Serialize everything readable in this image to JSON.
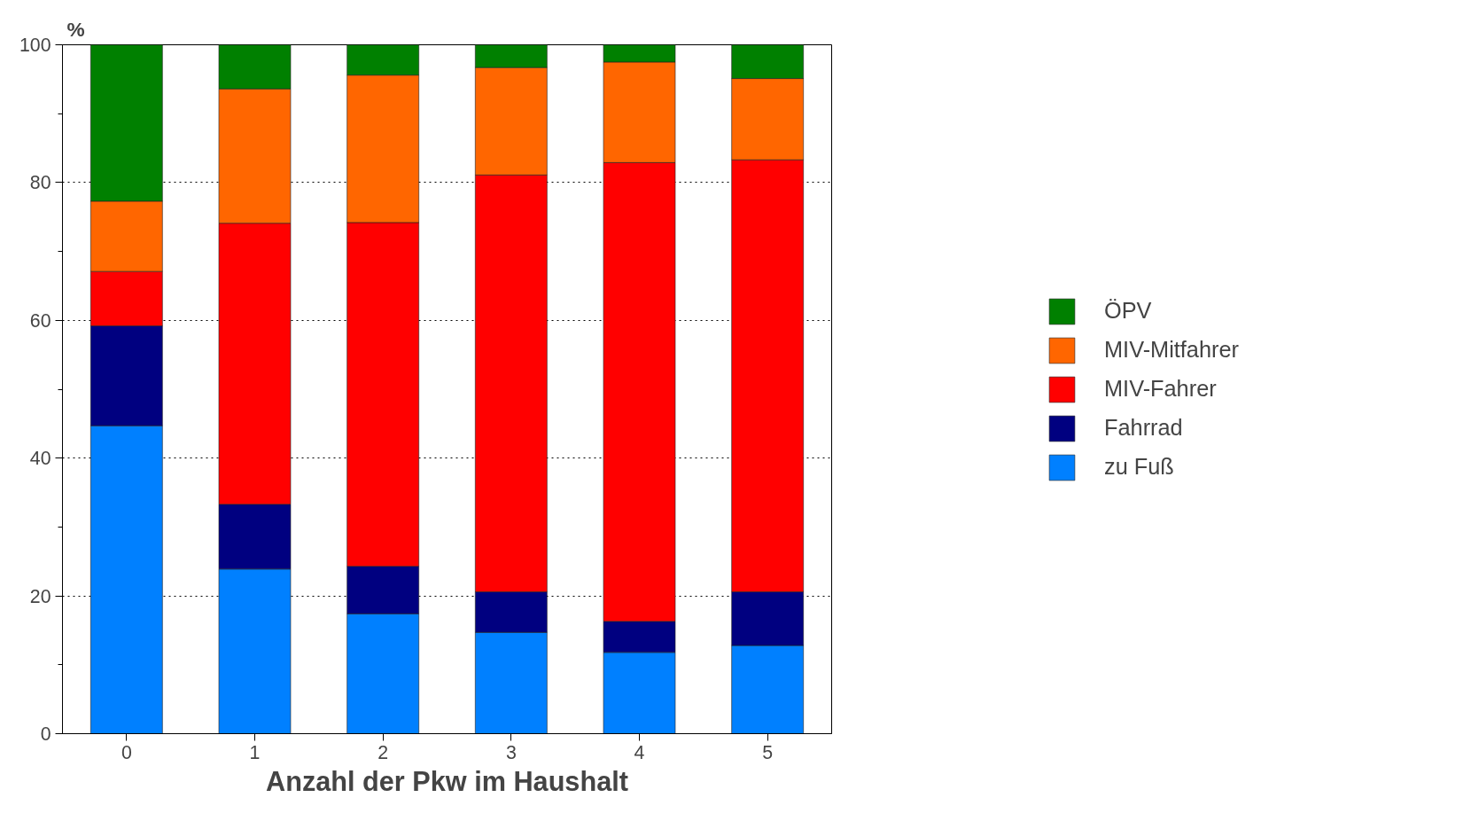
{
  "chart_data": {
    "type": "bar",
    "stacked": true,
    "xlabel": "Anzahl der Pkw im Haushalt",
    "ylabel": "%",
    "categories": [
      "0",
      "1",
      "2",
      "3",
      "4",
      "5"
    ],
    "series": [
      {
        "name": "zu Fuß",
        "color": "#0080ff",
        "values": [
          44.7,
          23.9,
          17.4,
          14.7,
          11.8,
          12.8
        ]
      },
      {
        "name": "Fahrrad",
        "color": "#000080",
        "values": [
          14.5,
          9.4,
          6.9,
          5.9,
          4.5,
          7.8
        ]
      },
      {
        "name": "MIV-Fahrer",
        "color": "#ff0000",
        "values": [
          7.9,
          40.8,
          49.9,
          60.5,
          66.6,
          62.7
        ]
      },
      {
        "name": "MIV-Mitfahrer",
        "color": "#ff6600",
        "values": [
          10.2,
          19.5,
          21.4,
          15.6,
          14.6,
          11.8
        ]
      },
      {
        "name": "ÖPV",
        "color": "#008000",
        "values": [
          22.7,
          6.4,
          4.4,
          3.3,
          2.5,
          4.9
        ]
      }
    ],
    "ylim": [
      0,
      100
    ],
    "yticks": [
      0,
      20,
      40,
      60,
      80,
      100
    ],
    "grid": "y",
    "legend": "right"
  }
}
